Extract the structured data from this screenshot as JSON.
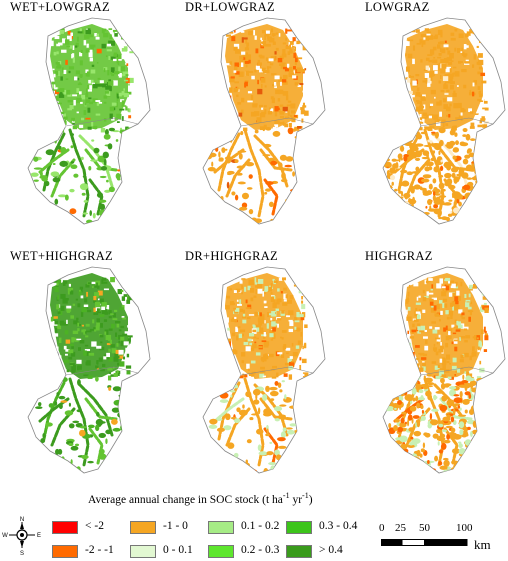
{
  "panels": [
    {
      "title": "WET+LOWGRAZ",
      "palette": [
        "#64c432",
        "#3c9b1e",
        "#98e66c",
        "#ff6a00"
      ],
      "weights": [
        0.5,
        0.25,
        0.2,
        0.05
      ]
    },
    {
      "title": "DR+LOWGRAZ",
      "palette": [
        "#f5a623",
        "#ff6a00",
        "#f5a623",
        "#e55b0a"
      ],
      "weights": [
        0.7,
        0.15,
        0.1,
        0.05
      ]
    },
    {
      "title": "LOWGRAZ",
      "palette": [
        "#f5a623",
        "#f5a623",
        "#ff6a00",
        "#fdebc8"
      ],
      "weights": [
        0.8,
        0.1,
        0.05,
        0.05
      ]
    },
    {
      "title": "WET+HIGHGRAZ",
      "palette": [
        "#3c9b1e",
        "#64c432",
        "#4cb224",
        "#f5a623"
      ],
      "weights": [
        0.6,
        0.25,
        0.1,
        0.05
      ]
    },
    {
      "title": "DR+HIGHGRAZ",
      "palette": [
        "#f5a623",
        "#c8f0b4",
        "#ff6a00",
        "#f5a623"
      ],
      "weights": [
        0.55,
        0.3,
        0.1,
        0.05
      ]
    },
    {
      "title": "HIGHGRAZ",
      "palette": [
        "#f5a623",
        "#ff6a00",
        "#c8f0b4",
        "#f5a623"
      ],
      "weights": [
        0.5,
        0.2,
        0.25,
        0.05
      ]
    }
  ],
  "legend": {
    "title": "Average annual change in SOC stock (t ha",
    "unit_exp1": "-1",
    "unit_mid": " yr",
    "unit_exp2": "-1",
    "unit_end": ")",
    "items": [
      {
        "label": "< -2",
        "color": "#ff0000"
      },
      {
        "label": "-2 - -1",
        "color": "#ff6a00"
      },
      {
        "label": "-1 - 0",
        "color": "#f5a623"
      },
      {
        "label": "0 - 0.1",
        "color": "#e2f8d2"
      },
      {
        "label": "0.1 - 0.2",
        "color": "#a6ec86"
      },
      {
        "label": "0.2 - 0.3",
        "color": "#5ee62e"
      },
      {
        "label": "0.3 - 0.4",
        "color": "#3cc41a"
      },
      {
        "label": "> 0.4",
        "color": "#3a9b1c"
      }
    ]
  },
  "compass": {
    "n": "N",
    "s": "S",
    "e": "E",
    "w": "W",
    "icon": "compass-rose-icon"
  },
  "scale": {
    "ticks": [
      "0",
      "25",
      "50",
      "100"
    ],
    "unit": "km"
  },
  "colors": {
    "outline": "#888888",
    "background_fill": "#ffffff"
  }
}
